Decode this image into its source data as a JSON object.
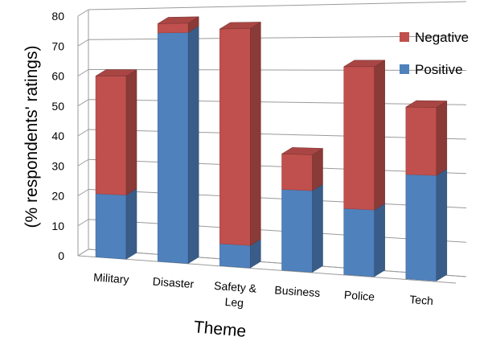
{
  "chart_data": {
    "type": "bar",
    "stacked": true,
    "three_d": true,
    "categories": [
      "Military",
      "Disaster",
      "Safety & Leg",
      "Business",
      "Police",
      "Tech"
    ],
    "category_lines": [
      [
        "Military"
      ],
      [
        "Disaster"
      ],
      [
        "Safety &",
        "Leg"
      ],
      [
        "Business"
      ],
      [
        "Police"
      ],
      [
        "Tech"
      ]
    ],
    "series": [
      {
        "name": "Positive",
        "color": "#4F81BD",
        "values": [
          21,
          74,
          7,
          25,
          20,
          31
        ]
      },
      {
        "name": "Negative",
        "color": "#C0504D",
        "values": [
          39,
          3,
          68,
          11,
          43,
          20
        ]
      }
    ],
    "xlabel": "Theme",
    "ylabel": "(% respondents' ratings)",
    "ylim": [
      0,
      80
    ],
    "yticks": [
      0,
      10,
      20,
      30,
      40,
      50,
      60,
      70,
      80
    ],
    "grid": true,
    "legend": {
      "position": "top-right",
      "entries": [
        {
          "name": "Negative",
          "color": "#C0504D"
        },
        {
          "name": "Positive",
          "color": "#4F81BD"
        }
      ]
    }
  }
}
